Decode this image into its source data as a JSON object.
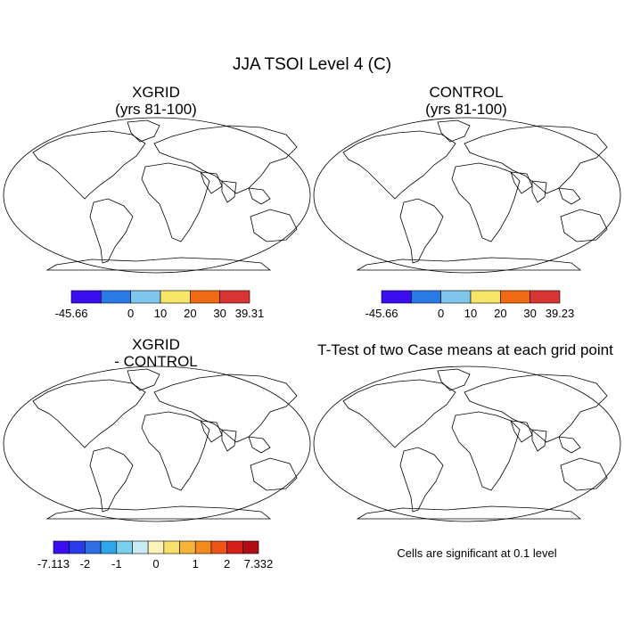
{
  "title": "JJA TSOI Level 4 (C)",
  "panels": [
    {
      "id": "xgrid",
      "title_line1": "XGRID",
      "title_line2": "(yrs 81-100)",
      "colors": [
        "#3b0ef0",
        "#2a7ae6",
        "#7ec6ec",
        "#f6e566",
        "#f06a14",
        "#d83434"
      ],
      "labels": [
        "-45.66",
        "0",
        "10",
        "20",
        "30",
        "39.31"
      ]
    },
    {
      "id": "control",
      "title_line1": "CONTROL",
      "title_line2": "(yrs 81-100)",
      "colors": [
        "#3b0ef0",
        "#2a7ae6",
        "#7ec6ec",
        "#f6e566",
        "#f06a14",
        "#d83434"
      ],
      "labels": [
        "-45.66",
        "0",
        "10",
        "20",
        "30",
        "39.23"
      ]
    },
    {
      "id": "diff",
      "title_line1": "XGRID",
      "title_line2": "- CONTROL",
      "colors": [
        "#3b0ef0",
        "#2b3ae8",
        "#2f6fe4",
        "#2fa6ea",
        "#7ad0ee",
        "#c8eaf4",
        "#fbf3b8",
        "#f8e06a",
        "#f6b538",
        "#f38a1e",
        "#ec5418",
        "#d81e18",
        "#b00e14"
      ],
      "labels": [
        "-7.113",
        "-2",
        "-1",
        "0",
        "1",
        "2",
        "7.332"
      ]
    }
  ],
  "ttest": {
    "title": "T-Test of two Case means at each grid point",
    "note": "Cells are significant at 0.1 level",
    "color": "#e00000"
  }
}
